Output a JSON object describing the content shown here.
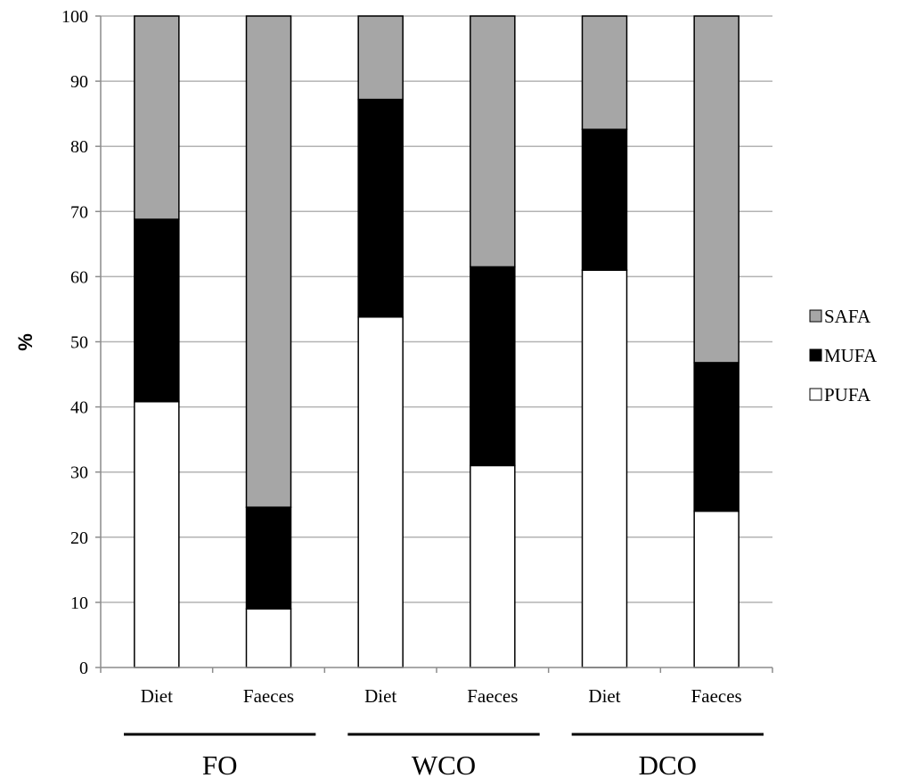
{
  "chart_data": {
    "type": "bar",
    "stacked": true,
    "categories": [
      "Diet",
      "Faeces",
      "Diet",
      "Faeces",
      "Diet",
      "Faeces"
    ],
    "groups": [
      {
        "label": "FO",
        "categories": [
          0,
          1
        ]
      },
      {
        "label": "WCO",
        "categories": [
          2,
          3
        ]
      },
      {
        "label": "DCO",
        "categories": [
          4,
          5
        ]
      }
    ],
    "series": [
      {
        "name": "PUFA",
        "color": "#ffffff",
        "values": [
          40.8,
          9.0,
          53.8,
          31.0,
          61.0,
          24.0
        ]
      },
      {
        "name": "MUFA",
        "color": "#000000",
        "values": [
          28.0,
          15.6,
          33.4,
          30.5,
          21.6,
          22.8
        ]
      },
      {
        "name": "SAFA",
        "color": "#a6a6a6",
        "values": [
          31.2,
          75.4,
          12.8,
          38.5,
          17.4,
          53.2
        ]
      }
    ],
    "legend_order": [
      "SAFA",
      "MUFA",
      "PUFA"
    ],
    "legend_position": "right",
    "ylabel": "%",
    "xlabel": "",
    "ylim": [
      0,
      100
    ],
    "yticks": [
      0,
      10,
      20,
      30,
      40,
      50,
      60,
      70,
      80,
      90,
      100
    ],
    "grid": true
  }
}
